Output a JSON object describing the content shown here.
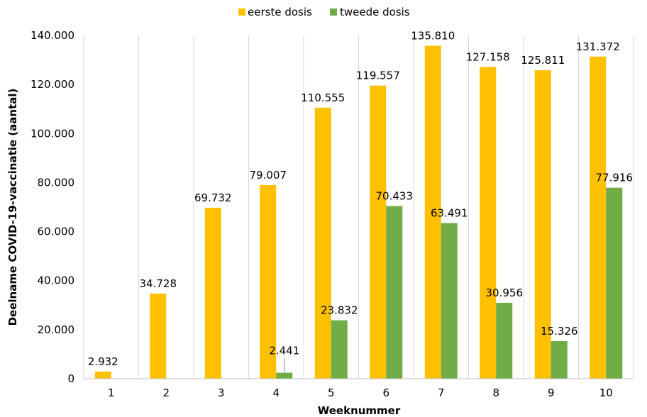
{
  "chart_data": {
    "type": "bar",
    "title": "",
    "xlabel": "Weeknummer",
    "ylabel": "Deelname COVID-19-vaccinatie (aantal)",
    "ylim": [
      0,
      140000
    ],
    "yticks": [
      0,
      20000,
      40000,
      60000,
      80000,
      100000,
      120000,
      140000
    ],
    "ytick_labels": [
      "0",
      "20.000",
      "40.000",
      "60.000",
      "80.000",
      "100.000",
      "120.000",
      "140.000"
    ],
    "categories": [
      "1",
      "2",
      "3",
      "4",
      "5",
      "6",
      "7",
      "8",
      "9",
      "10"
    ],
    "grid": "vertical-lines-between-categories",
    "legend_position": "top-center",
    "series": [
      {
        "name": "eerste dosis",
        "color": "#FFC000",
        "values": [
          2932,
          34728,
          69732,
          79007,
          110555,
          119557,
          135810,
          127158,
          125811,
          131372
        ],
        "labels": [
          "2.932",
          "34.728",
          "69.732",
          "79.007",
          "110.555",
          "119.557",
          "135.810",
          "127.158",
          "125.811",
          "131.372"
        ]
      },
      {
        "name": "tweede dosis",
        "color": "#70AD47",
        "values": [
          null,
          null,
          null,
          2441,
          23832,
          70433,
          63491,
          30956,
          15326,
          77916
        ],
        "labels": [
          null,
          null,
          null,
          "2.441",
          "23.832",
          "70.433",
          "63.491",
          "30.956",
          "15.326",
          "77.916"
        ]
      }
    ]
  }
}
